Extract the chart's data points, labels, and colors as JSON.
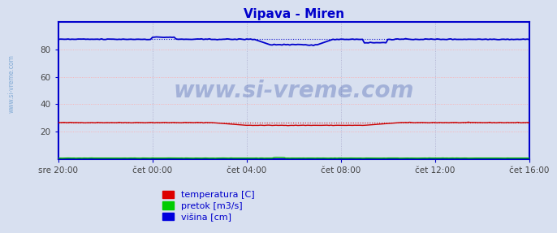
{
  "title": "Vipava - Miren",
  "title_color": "#0000cc",
  "bg_color": "#d8e0f0",
  "plot_bg_color": "#d8e0f0",
  "ylim": [
    0,
    100
  ],
  "yticks": [
    20,
    40,
    60,
    80
  ],
  "xtick_labels": [
    "sre 20:00",
    "čet 00:00",
    "čet 04:00",
    "čet 08:00",
    "čet 12:00",
    "čet 16:00"
  ],
  "xtick_positions": [
    0,
    4,
    8,
    12,
    16,
    20
  ],
  "watermark_text": "www.si-vreme.com",
  "watermark_color": "#1a3a9a",
  "watermark_alpha": 0.28,
  "legend_items": [
    {
      "label": "temperatura [C]",
      "color": "#dd0000"
    },
    {
      "label": "pretok [m3/s]",
      "color": "#00cc00"
    },
    {
      "label": "višina [cm]",
      "color": "#0000dd"
    }
  ],
  "grid_color_h": "#ffaaaa",
  "grid_color_v": "#aaaacc",
  "line_color_temp": "#cc0000",
  "line_color_pretok": "#00bb00",
  "line_color_visina": "#0000cc",
  "side_label": "www.si-vreme.com",
  "side_label_color": "#6699cc",
  "temp_mean": 26.5,
  "visina_mean": 87.5,
  "pretok_mean": 0.5,
  "spine_color": "#0000cc",
  "tick_color": "#444444",
  "tick_fontsize": 7.5,
  "title_fontsize": 11
}
